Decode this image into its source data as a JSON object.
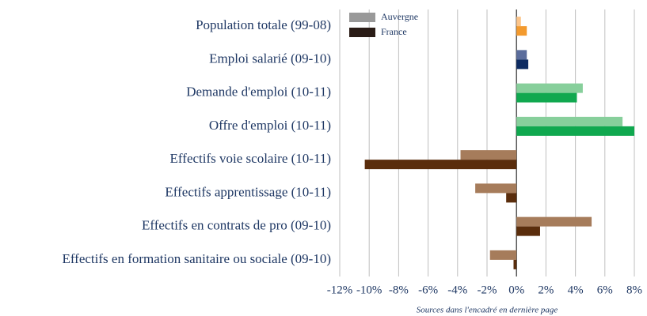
{
  "chart_data": {
    "type": "barh",
    "categories": [
      "Population totale (99-08)",
      "Emploi salarié (09-10)",
      "Demande d'emploi (10-11)",
      "Offre d'emploi (10-11)",
      "Effectifs voie scolaire (10-11)",
      "Effectifs apprentissage (10-11)",
      "Effectifs en contrats de pro (09-10)",
      "Effectifs en formation sanitaire ou sociale (09-10)"
    ],
    "series": [
      {
        "name": "Auvergne",
        "color": "#999999",
        "colors": [
          "#fcc58a",
          "#5b6d9c",
          "#87cf9b",
          "#87cf9b",
          "#a67c5b",
          "#a67c5b",
          "#a67c5b",
          "#a67c5b"
        ],
        "values": [
          0.3,
          0.7,
          4.5,
          7.2,
          -3.8,
          -2.8,
          5.1,
          -1.8
        ]
      },
      {
        "name": "France",
        "color": "#2a1c16",
        "colors": [
          "#f39a2e",
          "#0e2c62",
          "#10a84f",
          "#10a84f",
          "#5a2d0c",
          "#5a2d0c",
          "#5a2d0c",
          "#5a2d0c"
        ],
        "values": [
          0.7,
          0.8,
          4.1,
          8.0,
          -10.3,
          -0.7,
          1.6,
          -0.2
        ]
      }
    ],
    "xlim": [
      -12,
      8
    ],
    "xticks": [
      {
        "value": -12,
        "label": "-12%"
      },
      {
        "value": -10,
        "label": "-10%"
      },
      {
        "value": -8,
        "label": "-8%"
      },
      {
        "value": -6,
        "label": "-6%"
      },
      {
        "value": -4,
        "label": "-4%"
      },
      {
        "value": -2,
        "label": "-2%"
      },
      {
        "value": 0,
        "label": "0%"
      },
      {
        "value": 2,
        "label": "2%"
      },
      {
        "value": 4,
        "label": "4%"
      },
      {
        "value": 6,
        "label": "6%"
      },
      {
        "value": 8,
        "label": "8%"
      }
    ],
    "grid": true,
    "legend": "upper left",
    "note": "Sources dans l'encadré en dernière page"
  }
}
